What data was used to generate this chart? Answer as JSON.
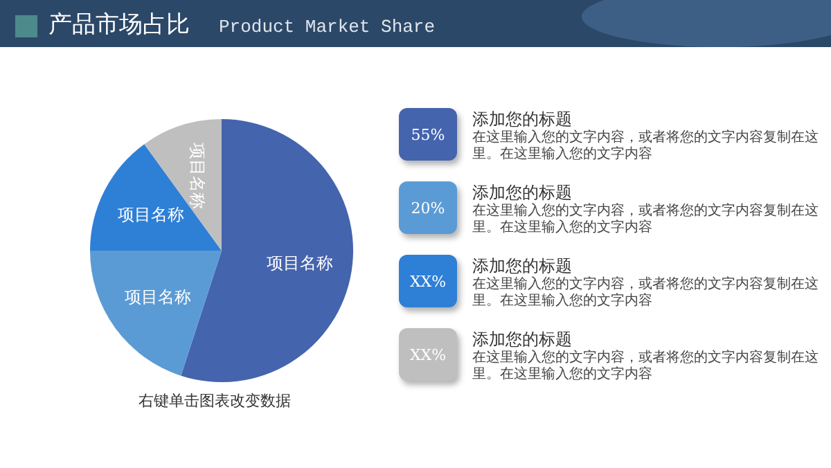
{
  "chart_data": {
    "type": "pie",
    "title": "产品市场占比",
    "subtitle": "Product Market Share",
    "categories": [
      "项目名称",
      "项目名称",
      "项目名称",
      "项目名称"
    ],
    "values": [
      55,
      20,
      15,
      10
    ],
    "colors": [
      "#4564ae",
      "#5b9bd5",
      "#2e7fd6",
      "#bfbfbf"
    ],
    "annotations": [
      "右键单击图表改变数据",
      "55%",
      "添加您的标题",
      "在这里输入您的文字内容，或者将您的文字内容复制在这里。在这里输入您的文字内容",
      "20%",
      "添加您的标题",
      "在这里输入您的文字内容，或者将您的文字内容复制在这里。在这里输入您的文字内容",
      "XX%",
      "添加您的标题",
      "在这里输入您的文字内容，或者将您的文字内容复制在这里。在这里输入您的文字内容",
      "XX%",
      "添加您的标题",
      "在这里输入您的文字内容，或者将您的文字内容复制在这里。在这里输入您的文字内容"
    ]
  }
}
